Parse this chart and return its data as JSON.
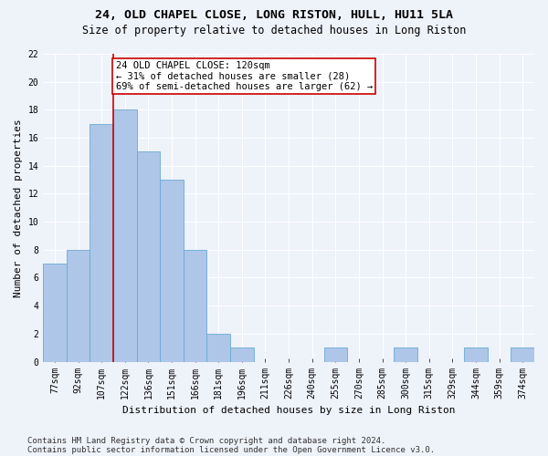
{
  "title": "24, OLD CHAPEL CLOSE, LONG RISTON, HULL, HU11 5LA",
  "subtitle": "Size of property relative to detached houses in Long Riston",
  "xlabel": "Distribution of detached houses by size in Long Riston",
  "ylabel": "Number of detached properties",
  "categories": [
    "77sqm",
    "92sqm",
    "107sqm",
    "122sqm",
    "136sqm",
    "151sqm",
    "166sqm",
    "181sqm",
    "196sqm",
    "211sqm",
    "226sqm",
    "240sqm",
    "255sqm",
    "270sqm",
    "285sqm",
    "300sqm",
    "315sqm",
    "329sqm",
    "344sqm",
    "359sqm",
    "374sqm"
  ],
  "values": [
    7,
    8,
    17,
    18,
    15,
    13,
    8,
    2,
    1,
    0,
    0,
    0,
    1,
    0,
    0,
    1,
    0,
    0,
    1,
    0,
    1
  ],
  "bar_color": "#aec6e8",
  "bar_edge_color": "#6aaad4",
  "reference_line_color": "#cc0000",
  "reference_line_x": 2.5,
  "annotation_text": "24 OLD CHAPEL CLOSE: 120sqm\n← 31% of detached houses are smaller (28)\n69% of semi-detached houses are larger (62) →",
  "annotation_box_color": "#ffffff",
  "annotation_box_edge_color": "#cc0000",
  "ylim": [
    0,
    22
  ],
  "yticks": [
    0,
    2,
    4,
    6,
    8,
    10,
    12,
    14,
    16,
    18,
    20,
    22
  ],
  "footnote1": "Contains HM Land Registry data © Crown copyright and database right 2024.",
  "footnote2": "Contains public sector information licensed under the Open Government Licence v3.0.",
  "background_color": "#eef2f9",
  "grid_color": "#ffffff",
  "title_fontsize": 9.5,
  "subtitle_fontsize": 8.5,
  "ylabel_fontsize": 8,
  "xlabel_fontsize": 8,
  "tick_fontsize": 7,
  "annotation_fontsize": 7.5,
  "footnote_fontsize": 6.5
}
